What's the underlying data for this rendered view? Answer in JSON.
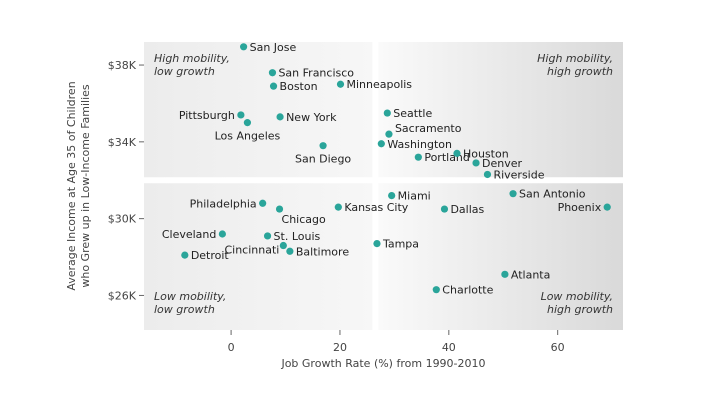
{
  "chart_data": {
    "type": "scatter",
    "xlabel": "Job Growth Rate (%) from 1990-2010",
    "ylabel_lines": [
      "Average Income at Age 35 of Children",
      "who Grew up in Low-Income Families"
    ],
    "xlim": [
      -16,
      72
    ],
    "ylim": [
      24.2,
      39.2
    ],
    "x_ticks": [
      {
        "value": 0,
        "label": "0"
      },
      {
        "value": 20,
        "label": "20"
      },
      {
        "value": 40,
        "label": "40"
      },
      {
        "value": 60,
        "label": "60"
      }
    ],
    "y_ticks": [
      {
        "value": 26,
        "label": "$26K"
      },
      {
        "value": 30,
        "label": "$30K"
      },
      {
        "value": 34,
        "label": "$34K"
      },
      {
        "value": 38,
        "label": "$38K"
      }
    ],
    "divider": {
      "x": 26.5,
      "y": 32
    },
    "marker_color": "#2aa59a",
    "quadrant_labels": {
      "top_left": [
        "High mobility,",
        "low growth"
      ],
      "top_right": [
        "High mobility,",
        "high growth"
      ],
      "bottom_left": [
        "Low mobility,",
        "low growth"
      ],
      "bottom_right": [
        "Low mobility,",
        "high growth"
      ]
    },
    "points": [
      {
        "city": "San Jose",
        "x": 2.3,
        "y": 38.95,
        "pos": "right"
      },
      {
        "city": "San Francisco",
        "x": 7.6,
        "y": 37.6,
        "pos": "right"
      },
      {
        "city": "Boston",
        "x": 7.8,
        "y": 36.9,
        "pos": "right"
      },
      {
        "city": "Minneapolis",
        "x": 20.1,
        "y": 37.0,
        "pos": "right"
      },
      {
        "city": "Pittsburgh",
        "x": 1.8,
        "y": 35.4,
        "pos": "left"
      },
      {
        "city": "New York",
        "x": 9.0,
        "y": 35.3,
        "pos": "right"
      },
      {
        "city": "Los Angeles",
        "x": 3.0,
        "y": 35.0,
        "pos": "below"
      },
      {
        "city": "San Diego",
        "x": 16.9,
        "y": 33.8,
        "pos": "below"
      },
      {
        "city": "Seattle",
        "x": 28.7,
        "y": 35.5,
        "pos": "right"
      },
      {
        "city": "Sacramento",
        "x": 29.0,
        "y": 34.4,
        "pos": "right-up"
      },
      {
        "city": "Washington",
        "x": 27.6,
        "y": 33.9,
        "pos": "right"
      },
      {
        "city": "Portland",
        "x": 34.4,
        "y": 33.2,
        "pos": "right"
      },
      {
        "city": "Houston",
        "x": 41.5,
        "y": 33.4,
        "pos": "right"
      },
      {
        "city": "Denver",
        "x": 45.0,
        "y": 32.9,
        "pos": "right"
      },
      {
        "city": "Riverside",
        "x": 47.1,
        "y": 32.3,
        "pos": "right"
      },
      {
        "city": "Miami",
        "x": 29.5,
        "y": 31.2,
        "pos": "right"
      },
      {
        "city": "San Antonio",
        "x": 51.8,
        "y": 31.3,
        "pos": "right"
      },
      {
        "city": "Phoenix",
        "x": 69.1,
        "y": 30.6,
        "pos": "left"
      },
      {
        "city": "Philadelphia",
        "x": 5.8,
        "y": 30.8,
        "pos": "left"
      },
      {
        "city": "Chicago",
        "x": 8.9,
        "y": 30.5,
        "pos": "below-right"
      },
      {
        "city": "Kansas City",
        "x": 19.7,
        "y": 30.6,
        "pos": "right"
      },
      {
        "city": "Dallas",
        "x": 39.2,
        "y": 30.5,
        "pos": "right"
      },
      {
        "city": "Cleveland",
        "x": -1.6,
        "y": 29.2,
        "pos": "left"
      },
      {
        "city": "St. Louis",
        "x": 6.7,
        "y": 29.1,
        "pos": "right"
      },
      {
        "city": "Cincinnati",
        "x": 9.6,
        "y": 28.6,
        "pos": "left-down"
      },
      {
        "city": "Baltimore",
        "x": 10.8,
        "y": 28.3,
        "pos": "right"
      },
      {
        "city": "Detroit",
        "x": -8.5,
        "y": 28.1,
        "pos": "right"
      },
      {
        "city": "Tampa",
        "x": 26.8,
        "y": 28.7,
        "pos": "right"
      },
      {
        "city": "Atlanta",
        "x": 50.3,
        "y": 27.1,
        "pos": "right"
      },
      {
        "city": "Charlotte",
        "x": 37.7,
        "y": 26.3,
        "pos": "right"
      }
    ]
  }
}
